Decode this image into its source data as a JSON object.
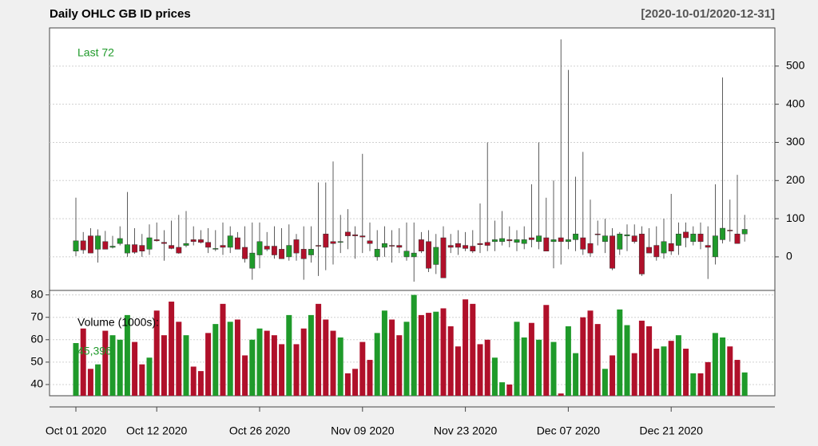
{
  "chart_data": [
    {
      "type": "candlestick",
      "title": "Daily OHLC GB ID prices",
      "subtitle": "[2020-10-01/2020-12-31]",
      "annotation": "Last 72",
      "categories": [
        "Oct 01 2020",
        null,
        null,
        null,
        null,
        null,
        null,
        null,
        null,
        null,
        null,
        "Oct 12 2020",
        null,
        null,
        null,
        null,
        null,
        null,
        null,
        null,
        null,
        null,
        null,
        null,
        null,
        "Oct 26 2020",
        null,
        null,
        null,
        null,
        null,
        null,
        null,
        null,
        null,
        null,
        null,
        null,
        null,
        "Nov 09 2020",
        null,
        null,
        null,
        null,
        null,
        null,
        null,
        null,
        null,
        null,
        null,
        null,
        null,
        "Nov 23 2020",
        null,
        null,
        null,
        null,
        null,
        null,
        null,
        null,
        null,
        null,
        null,
        null,
        null,
        "Dec 07 2020",
        null,
        null,
        null,
        null,
        null,
        null,
        null,
        null,
        null,
        null,
        null,
        null,
        null,
        "Dec 21 2020",
        null,
        null,
        null,
        null,
        null,
        null,
        null,
        null,
        null,
        null
      ],
      "open": [
        15,
        42,
        55,
        20,
        40,
        25,
        35,
        10,
        32,
        30,
        20,
        45,
        38,
        30,
        25,
        30,
        45,
        45,
        38,
        20,
        30,
        25,
        50,
        25,
        -30,
        5,
        28,
        28,
        20,
        0,
        45,
        20,
        5,
        30,
        60,
        40,
        38,
        65,
        58,
        55,
        42,
        0,
        25,
        30,
        30,
        0,
        0,
        45,
        40,
        -20,
        50,
        30,
        35,
        30,
        28,
        35,
        38,
        40,
        40,
        45,
        38,
        35,
        50,
        40,
        50,
        40,
        50,
        40,
        45,
        50,
        35,
        60,
        40,
        55,
        20,
        55,
        55,
        60,
        25,
        30,
        10,
        35,
        30,
        65,
        40,
        60,
        30,
        0,
        45,
        70,
        60,
        60
      ],
      "high": [
        155,
        65,
        75,
        72,
        68,
        55,
        80,
        170,
        75,
        60,
        85,
        90,
        70,
        95,
        110,
        120,
        80,
        70,
        75,
        70,
        90,
        80,
        65,
        80,
        90,
        90,
        65,
        80,
        75,
        85,
        60,
        80,
        80,
        195,
        195,
        250,
        110,
        125,
        80,
        270,
        90,
        70,
        80,
        70,
        75,
        90,
        90,
        65,
        70,
        60,
        80,
        60,
        70,
        65,
        70,
        140,
        300,
        95,
        120,
        80,
        70,
        80,
        190,
        300,
        155,
        200,
        570,
        490,
        210,
        275,
        150,
        95,
        100,
        75,
        65,
        85,
        85,
        80,
        75,
        80,
        100,
        165,
        90,
        90,
        80,
        90,
        80,
        190,
        470,
        150,
        215,
        110
      ],
      "low": [
        2,
        8,
        10,
        -15,
        20,
        22,
        30,
        0,
        8,
        0,
        5,
        40,
        -10,
        20,
        8,
        25,
        30,
        35,
        10,
        15,
        5,
        10,
        20,
        -15,
        -60,
        -30,
        15,
        -5,
        -5,
        -10,
        -10,
        -60,
        -15,
        -50,
        -35,
        -20,
        10,
        20,
        -5,
        10,
        15,
        -10,
        0,
        -15,
        10,
        -10,
        -65,
        10,
        -40,
        -45,
        -55,
        10,
        5,
        15,
        10,
        10,
        15,
        15,
        30,
        25,
        15,
        20,
        25,
        20,
        15,
        -30,
        -20,
        20,
        15,
        5,
        0,
        30,
        10,
        -35,
        5,
        15,
        35,
        -50,
        10,
        -10,
        -5,
        5,
        5,
        25,
        30,
        20,
        -58,
        -20,
        35,
        40,
        35,
        40
      ],
      "close": [
        42,
        18,
        10,
        55,
        20,
        28,
        48,
        32,
        12,
        15,
        50,
        42,
        35,
        22,
        10,
        35,
        40,
        38,
        25,
        22,
        25,
        55,
        20,
        -5,
        10,
        40,
        20,
        5,
        -5,
        30,
        10,
        -5,
        20,
        30,
        25,
        35,
        40,
        55,
        55,
        52,
        35,
        20,
        35,
        28,
        25,
        15,
        10,
        15,
        -30,
        25,
        -55,
        25,
        25,
        22,
        15,
        32,
        30,
        45,
        48,
        42,
        45,
        45,
        45,
        55,
        15,
        45,
        40,
        45,
        60,
        20,
        10,
        58,
        55,
        -30,
        60,
        58,
        40,
        -45,
        10,
        0,
        40,
        15,
        60,
        50,
        60,
        40,
        25,
        55,
        75,
        68,
        35,
        72
      ],
      "up_color": "#1f9a2a",
      "down_color": "#b0102a",
      "ylim": [
        -88,
        600
      ],
      "yticks": [
        0,
        100,
        200,
        300,
        400,
        500
      ],
      "grid": true
    },
    {
      "type": "bar",
      "label": "Volume (1000s):",
      "last_value_label": "45,396",
      "values": [
        58.5,
        65,
        47,
        49,
        64,
        62,
        60,
        71,
        59,
        49,
        52,
        73,
        62,
        77,
        68,
        62,
        48,
        46,
        63,
        67,
        76,
        68,
        69,
        53,
        60,
        65,
        64,
        62,
        58,
        71,
        58,
        65,
        71,
        76,
        69,
        64,
        61,
        45,
        47,
        59,
        51,
        63,
        73,
        69,
        62,
        68,
        80,
        71,
        72,
        72.5,
        74,
        66,
        57,
        78,
        76,
        58,
        60,
        52,
        41,
        40,
        68,
        61,
        67.5,
        60,
        75.5,
        59,
        36,
        66,
        54,
        70,
        73,
        67,
        47,
        53,
        73.5,
        66.5,
        54,
        68.5,
        66,
        56,
        57,
        59.5,
        62,
        56,
        45,
        45,
        50,
        63,
        61,
        57,
        51,
        45.396
      ],
      "ylim": [
        35,
        82
      ],
      "yticks": [
        40,
        50,
        60,
        70,
        80
      ],
      "grid": true
    }
  ]
}
